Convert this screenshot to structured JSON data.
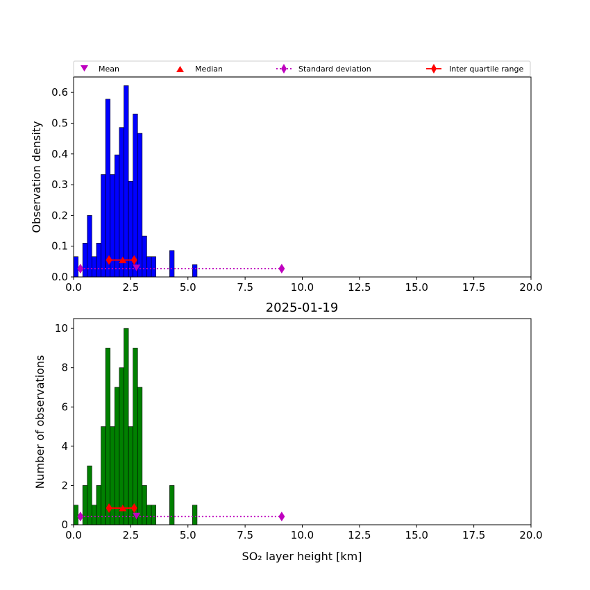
{
  "title": "2025-01-19",
  "colors": {
    "density_bars": "#0000ff",
    "count_bars": "#008000",
    "bar_edge": "#000000",
    "mean": "#bf00bf",
    "median": "#ff0000",
    "std": "#bf00bf",
    "iqr": "#ff0000"
  },
  "legend": {
    "placement": "top, above upper chart, 4 columns",
    "items": [
      {
        "key": "mean",
        "label": "Mean",
        "marker": "triangle-down"
      },
      {
        "key": "median",
        "label": "Median",
        "marker": "triangle-up"
      },
      {
        "key": "std",
        "label": "Standard deviation",
        "marker": "diamond-dotted-line"
      },
      {
        "key": "iqr",
        "label": "Inter quartile range",
        "marker": "diamond-solid-line"
      }
    ]
  },
  "chart_data": [
    {
      "type": "bar",
      "ylabel": "Observation density",
      "xlabel": "",
      "xlim": [
        0,
        20
      ],
      "ylim": [
        0,
        0.65
      ],
      "xticks": [
        "0.0",
        "2.5",
        "5.0",
        "7.5",
        "10.0",
        "12.5",
        "15.0",
        "17.5",
        "20.0"
      ],
      "yticks": [
        "0.0",
        "0.1",
        "0.2",
        "0.3",
        "0.4",
        "0.5",
        "0.6"
      ],
      "bin_width": 0.2,
      "bin_starts": [
        0,
        0.4,
        0.6,
        0.8,
        1.0,
        1.2,
        1.4,
        1.6,
        1.8,
        2.0,
        2.2,
        2.4,
        2.6,
        2.8,
        3.0,
        3.2,
        3.4,
        4.2,
        5.2
      ],
      "values": [
        0.066,
        0.11,
        0.2,
        0.066,
        0.11,
        0.333,
        0.578,
        0.333,
        0.397,
        0.486,
        0.622,
        0.311,
        0.53,
        0.467,
        0.133,
        0.066,
        0.066,
        0.086,
        0.04
      ],
      "mean": 2.75,
      "median": 2.15,
      "iqr": [
        1.55,
        2.65
      ],
      "std_range": [
        0.3,
        9.1
      ],
      "stats_y": {
        "mean": 0.03,
        "median": 0.055,
        "iqr": 0.055,
        "std": 0.027
      }
    },
    {
      "type": "bar",
      "ylabel": "Number of observations",
      "xlabel": "SO₂ layer height [km]",
      "xlim": [
        0,
        20
      ],
      "ylim": [
        0,
        10.5
      ],
      "xticks": [
        "0.0",
        "2.5",
        "5.0",
        "7.5",
        "10.0",
        "12.5",
        "15.0",
        "17.5",
        "20.0"
      ],
      "yticks": [
        "0",
        "2",
        "4",
        "6",
        "8",
        "10"
      ],
      "bin_width": 0.2,
      "bin_starts": [
        0,
        0.4,
        0.6,
        0.8,
        1.0,
        1.2,
        1.4,
        1.6,
        1.8,
        2.0,
        2.2,
        2.4,
        2.6,
        2.8,
        3.0,
        3.2,
        3.4,
        4.2,
        5.2
      ],
      "values": [
        1,
        2,
        3,
        1,
        2,
        5,
        9,
        5,
        7,
        8,
        10,
        5,
        9,
        7,
        2,
        1,
        1,
        2,
        1
      ],
      "mean": 2.75,
      "median": 2.15,
      "iqr": [
        1.55,
        2.65
      ],
      "std_range": [
        0.3,
        9.1
      ],
      "stats_y": {
        "mean": 0.45,
        "median": 0.85,
        "iqr": 0.85,
        "std": 0.42
      }
    }
  ]
}
